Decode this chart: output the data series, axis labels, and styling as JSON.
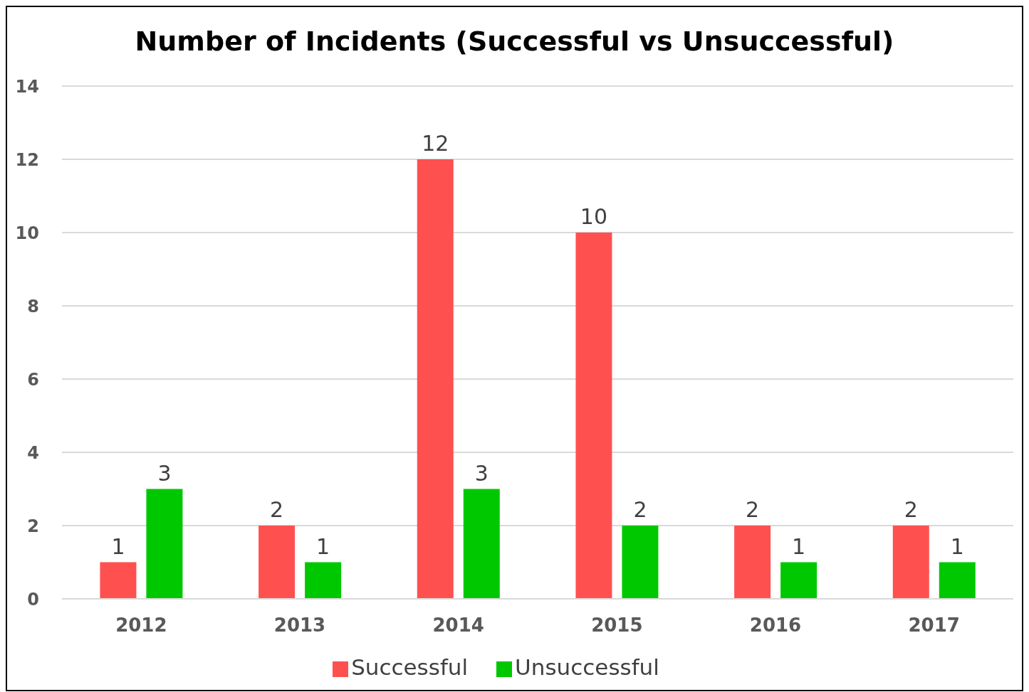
{
  "chart_data": {
    "type": "bar",
    "title": "Number of Incidents (Successful vs Unsuccessful)",
    "categories": [
      "2012",
      "2013",
      "2014",
      "2015",
      "2016",
      "2017"
    ],
    "series": [
      {
        "name": "Successful",
        "color": "#ff5050",
        "values": [
          1,
          2,
          12,
          10,
          2,
          2
        ]
      },
      {
        "name": "Unsuccessful",
        "color": "#00c800",
        "values": [
          3,
          1,
          3,
          2,
          1,
          1
        ]
      }
    ],
    "ylim": [
      0,
      14
    ],
    "yticks": [
      0,
      2,
      4,
      6,
      8,
      10,
      12,
      14
    ],
    "grid": "y",
    "legend": "bottom",
    "data_labels": true
  }
}
